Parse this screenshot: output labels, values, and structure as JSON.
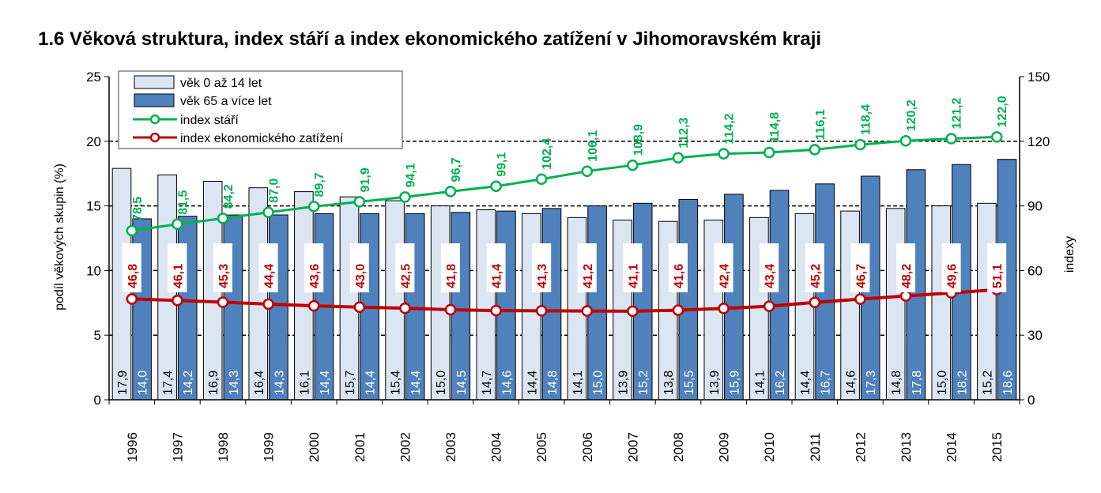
{
  "chart_data": {
    "type": "bar",
    "title": "1.6 Věková struktura, index stáří a index ekonomického zatížení v Jihomoravském kraji",
    "ylabel": "podíl věkových skupin (%)",
    "ylabel_right": "indexy",
    "ylim": [
      0,
      25
    ],
    "ylim_right": [
      0,
      150
    ],
    "yticks": [
      "0",
      "5",
      "10",
      "15",
      "20",
      "25"
    ],
    "yticks_right": [
      "0",
      "30",
      "60",
      "90",
      "120",
      "150"
    ],
    "categories": [
      "1996",
      "1997",
      "1998",
      "1999",
      "2000",
      "2001",
      "2002",
      "2003",
      "2004",
      "2005",
      "2006",
      "2007",
      "2008",
      "2009",
      "2010",
      "2011",
      "2012",
      "2013",
      "2014",
      "2015"
    ],
    "series": [
      {
        "name": "věk 0 až 14 let",
        "type": "bar",
        "axis": "left",
        "color": "#dce6f2",
        "values": [
          17.9,
          17.4,
          16.9,
          16.4,
          16.1,
          15.7,
          15.4,
          15.0,
          14.7,
          14.4,
          14.1,
          13.9,
          13.8,
          13.9,
          14.1,
          14.4,
          14.6,
          14.8,
          15.0,
          15.2
        ],
        "labels": [
          "17,9",
          "17,4",
          "16,9",
          "16,4",
          "16,1",
          "15,7",
          "15,4",
          "15,0",
          "14,7",
          "14,4",
          "14,1",
          "13,9",
          "13,8",
          "13,9",
          "14,1",
          "14,4",
          "14,6",
          "14,8",
          "15,0",
          "15,2"
        ]
      },
      {
        "name": "věk 65 a více let",
        "type": "bar",
        "axis": "left",
        "color": "#4f81bd",
        "values": [
          14.0,
          14.2,
          14.3,
          14.3,
          14.4,
          14.4,
          14.4,
          14.5,
          14.6,
          14.8,
          15.0,
          15.2,
          15.5,
          15.9,
          16.2,
          16.7,
          17.3,
          17.8,
          18.2,
          18.6
        ],
        "labels": [
          "14,0",
          "14,2",
          "14,3",
          "14,3",
          "14,4",
          "14,4",
          "14,4",
          "14,5",
          "14,6",
          "14,8",
          "15,0",
          "15,2",
          "15,5",
          "15,9",
          "16,2",
          "16,7",
          "17,3",
          "17,8",
          "18,2",
          "18,6"
        ]
      },
      {
        "name": "index stáří",
        "type": "line",
        "axis": "right",
        "color": "#00b050",
        "values": [
          78.5,
          81.5,
          84.2,
          87.0,
          89.7,
          91.9,
          94.1,
          96.7,
          99.1,
          102.4,
          106.1,
          108.9,
          112.3,
          114.2,
          114.8,
          116.1,
          118.4,
          120.2,
          121.2,
          122.0
        ],
        "labels": [
          "78,5",
          "81,5",
          "84,2",
          "87,0",
          "89,7",
          "91,9",
          "94,1",
          "96,7",
          "99,1",
          "102,4",
          "106,1",
          "108,9",
          "112,3",
          "114,2",
          "114,8",
          "116,1",
          "118,4",
          "120,2",
          "121,2",
          "122,0"
        ]
      },
      {
        "name": "index ekonomického zatížení",
        "type": "line",
        "axis": "right",
        "color": "#c00000",
        "values": [
          46.8,
          46.1,
          45.3,
          44.4,
          43.6,
          43.0,
          42.5,
          41.8,
          41.4,
          41.3,
          41.2,
          41.1,
          41.6,
          42.4,
          43.4,
          45.2,
          46.7,
          48.2,
          49.6,
          51.1
        ],
        "labels": [
          "46,8",
          "46,1",
          "45,3",
          "44,4",
          "43,6",
          "43,0",
          "42,5",
          "41,8",
          "41,4",
          "41,3",
          "41,2",
          "41,1",
          "41,6",
          "42,4",
          "43,4",
          "45,2",
          "46,7",
          "48,2",
          "49,6",
          "51,1"
        ]
      }
    ],
    "grid": true,
    "legend": "top-left"
  }
}
